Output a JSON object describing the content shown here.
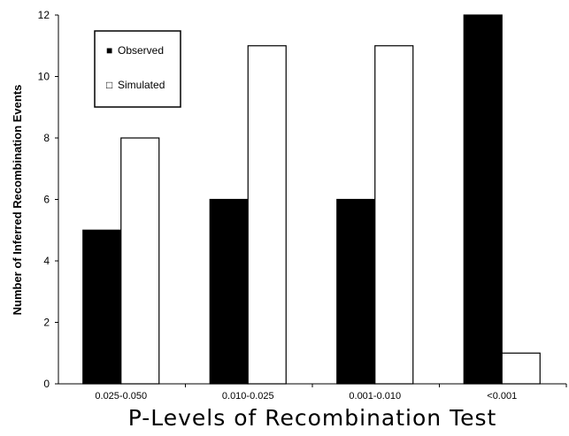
{
  "chart_data": {
    "type": "bar",
    "categories": [
      "0.025-0.050",
      "0.010-0.025",
      "0.001-0.010",
      "<0.001"
    ],
    "series": [
      {
        "name": "Observed",
        "values": [
          5,
          6,
          6,
          12
        ],
        "color": "#000000"
      },
      {
        "name": "Simulated",
        "values": [
          8,
          11,
          11,
          1
        ],
        "color": "#ffffff"
      }
    ],
    "xlabel": "P-Levels of Recombination Test",
    "ylabel": "Number of Inferred Recombination Events",
    "ylim": [
      0,
      12
    ],
    "yticks": [
      "0",
      "2",
      "4",
      "6",
      "8",
      "10",
      "12"
    ],
    "grid": false,
    "legend": {
      "position": "top-left",
      "entries": [
        "Observed",
        "Simulated"
      ],
      "markers": [
        "■",
        "□"
      ]
    }
  }
}
